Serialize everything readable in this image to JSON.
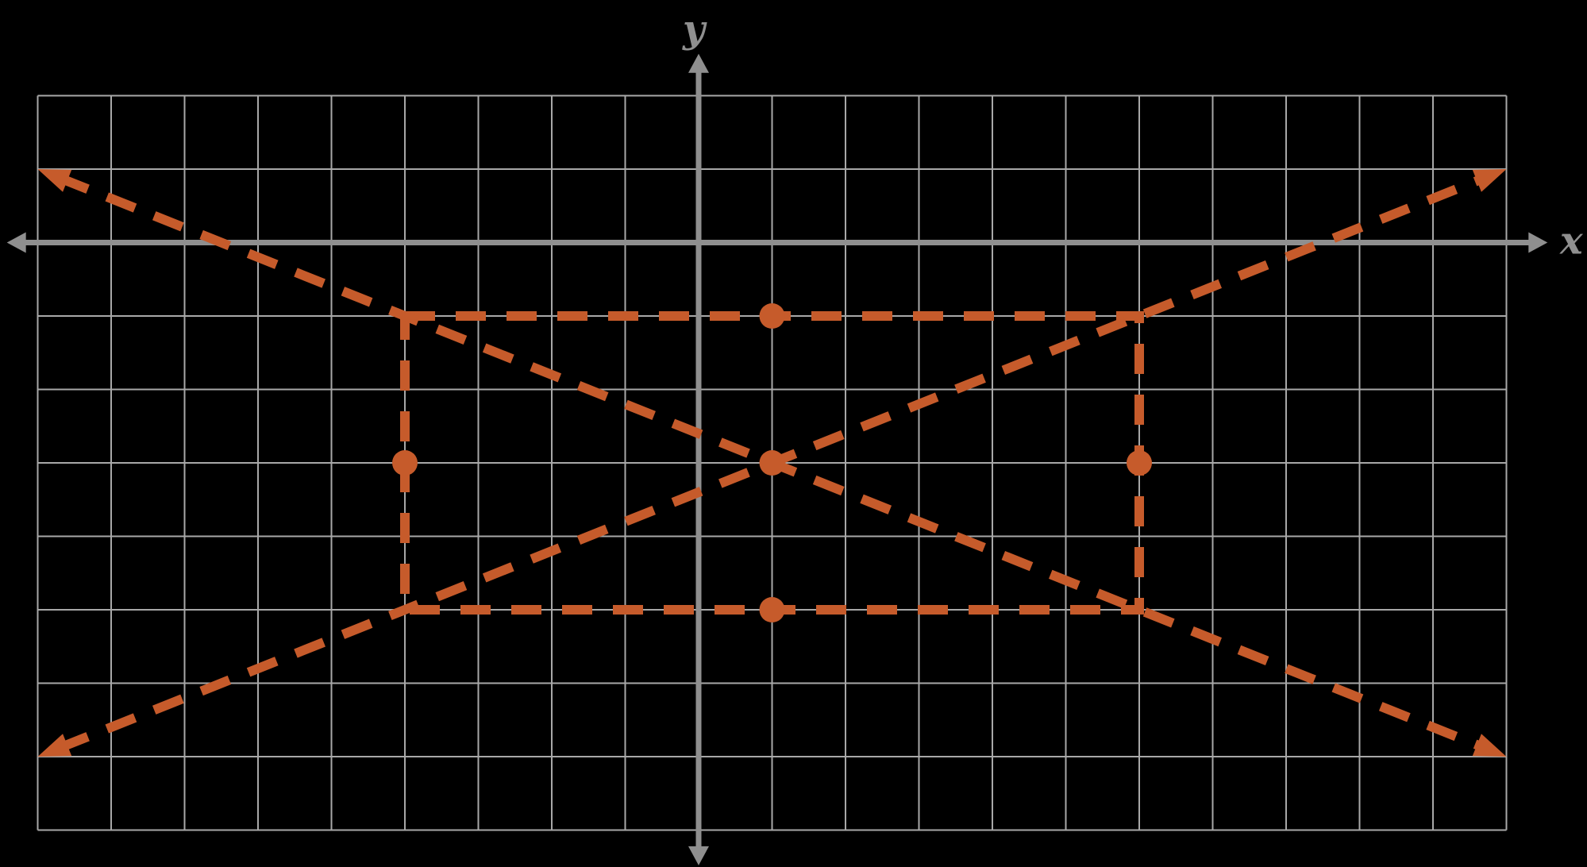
{
  "page": {
    "background": "#000000"
  },
  "chart_data": {
    "type": "line",
    "subtype": "coordinate-plane-hyperbola-guide",
    "title": "",
    "axes": {
      "x_label": "x",
      "y_label": "y",
      "x_range": [
        -9,
        11
      ],
      "y_range": [
        -8,
        2
      ],
      "grid_step": 1,
      "grid_on": true,
      "x_axis_arrow_span": [
        -9.42,
        11.56
      ],
      "y_axis_arrow_span": [
        -8.48,
        2.57
      ]
    },
    "figure": {
      "description": "Dashed fundamental rectangle and asymptote guide lines of a hyperbola centered at (1, -3) with a = 5 (horizontal) and b = 2 (vertical)",
      "center": [
        1,
        -3
      ],
      "rectangle": {
        "x_min": -4,
        "x_max": 6,
        "y_min": -5,
        "y_max": -1
      },
      "asymptotes": [
        {
          "name": "ascending",
          "slope": 0.4,
          "endpoints": [
            [
              -9,
              -7
            ],
            [
              11,
              1
            ]
          ]
        },
        {
          "name": "descending",
          "slope": -0.4,
          "endpoints": [
            [
              -9,
              1
            ],
            [
              11,
              -7
            ]
          ]
        }
      ],
      "marked_points": [
        [
          1,
          -1
        ],
        [
          -4,
          -3
        ],
        [
          1,
          -3
        ],
        [
          6,
          -3
        ],
        [
          1,
          -5
        ]
      ]
    },
    "style": {
      "background_color": "#000000",
      "grid_color": "#a8a8a8",
      "axis_color": "#8f8f8f",
      "label_color": "#8f8f8f",
      "accent_color": "#c65b2b",
      "dash_length": 38,
      "dash_gap": 26,
      "dash_thickness": 12,
      "point_radius": 16
    }
  }
}
